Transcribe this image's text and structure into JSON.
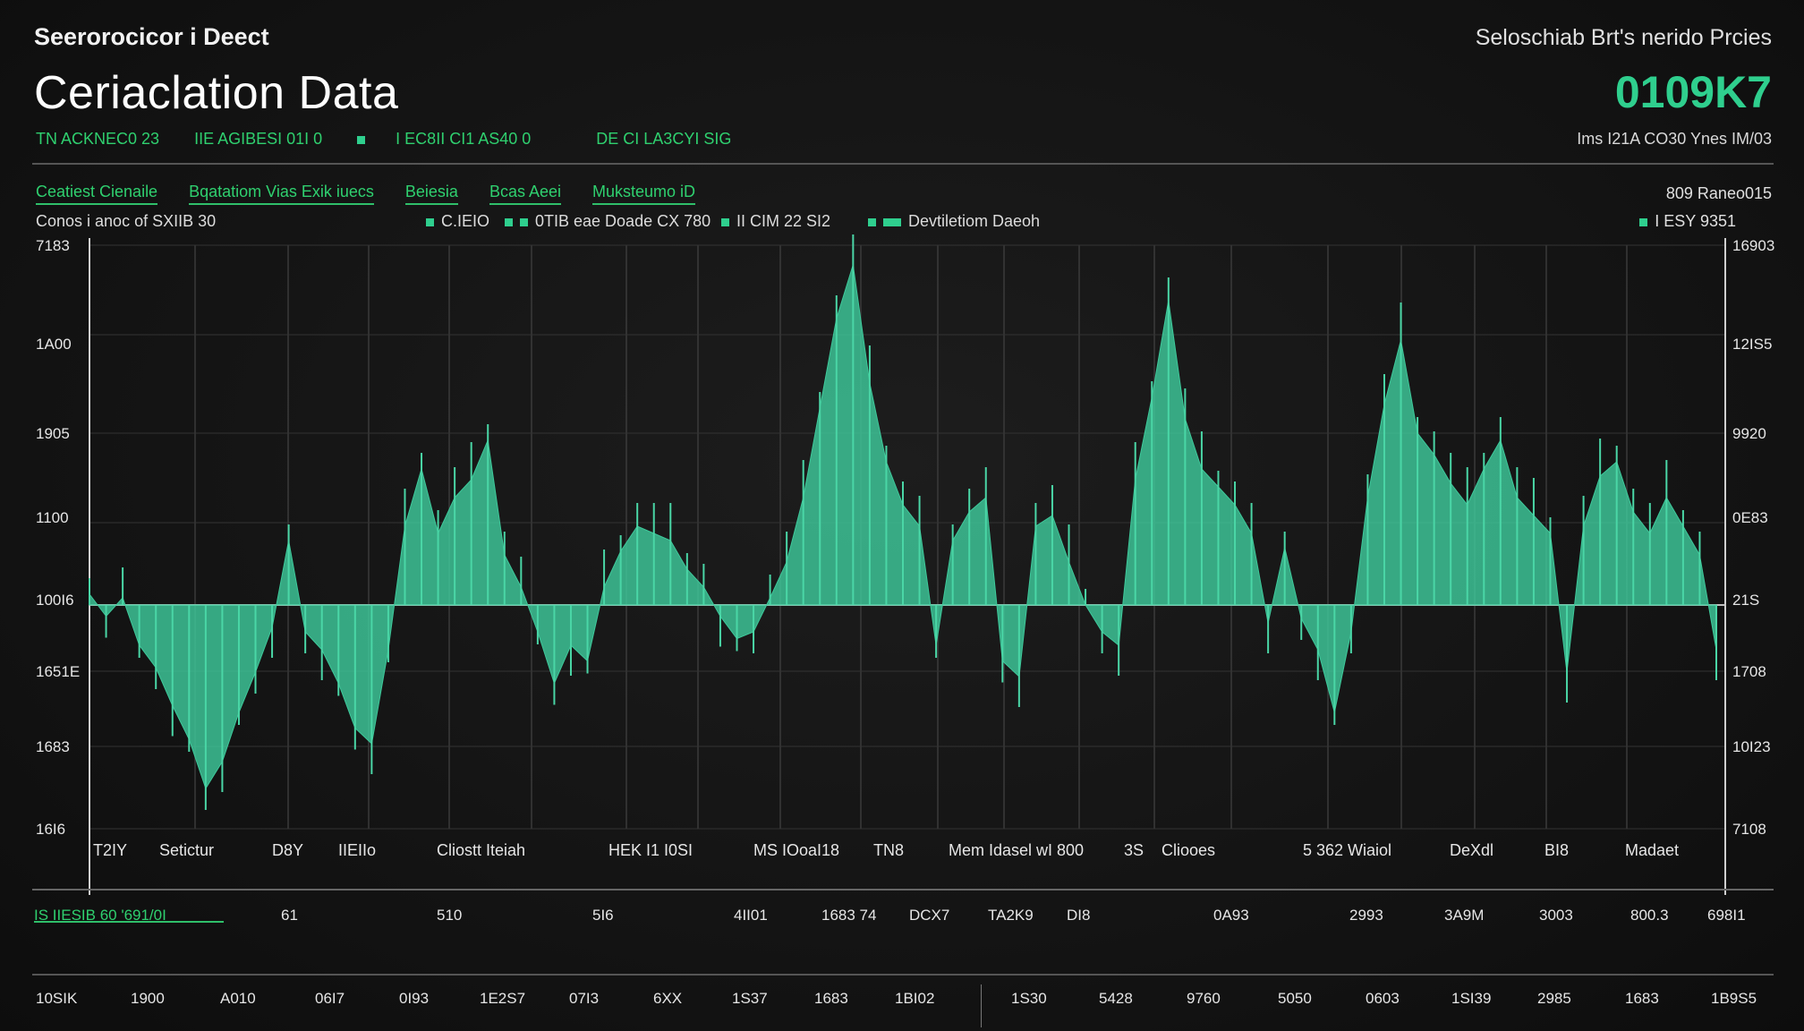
{
  "header": {
    "eyebrow": "Seerorocicor i Deect",
    "title": "Ceriaclation Data",
    "subtitle_items": [
      "TN ACKNEC0 23",
      "IIE AGIBESI 01I 0",
      "I EC8II CI1 AS40 0",
      "DE CI LA3CYI SIG"
    ],
    "right_title": "Seloschiab Brt's nerido Prcies",
    "big_value": "0109K7",
    "right_subtitle": "Ims I21A CO30 Ynes IM/03"
  },
  "legend": {
    "green_items": [
      "Ceatiest Cienaile",
      "Bqatatiom Vias Exik iuecs",
      "Beiesia",
      "Bcas Aeei",
      "Muksteumo iD"
    ],
    "row_label": "Conos i anoc of SXIIB 30",
    "series_items": [
      {
        "icon": "square",
        "label": "C.IEIO"
      },
      {
        "icon": "square",
        "label": ""
      },
      {
        "icon": "square",
        "label": "0TIB eae Doade CX 780"
      },
      {
        "icon": "square",
        "label": "II CIM 22 SI2"
      },
      {
        "icon": "square",
        "label": ""
      },
      {
        "icon": "square-wide",
        "label": "Devtiletiom Daeoh"
      }
    ],
    "right_label": "809 Raneo015",
    "right_item": "I ESY 9351"
  },
  "chart_data": {
    "type": "area",
    "title": "",
    "xlabel": "",
    "ylabel": "",
    "baseline": 0,
    "ylim": [
      -1,
      1
    ],
    "grid": true,
    "color": "#3ec99b",
    "y_ticks_left": [
      "7183",
      "1A00",
      "1905",
      "1100",
      "100I6",
      "1651E",
      "1683",
      "16I6"
    ],
    "y_ticks_right": [
      "16903",
      "12IS5",
      "9920",
      "0E83",
      "21S",
      "1708",
      "10I23",
      "7108"
    ],
    "x_band_labels": [
      "T2IY",
      "Setictur",
      "D8Y",
      "IIEIIo",
      "Cliostt Iteiah",
      "HEK I1 I0SI",
      "MS IOoaI18",
      "TN8",
      "Mem Idasel wI 800",
      "3S",
      "Cliooes",
      "5 362 Wiaiol",
      "DeXdl",
      "BI8",
      "Madaet"
    ],
    "x_axis_labels": [
      "IS IIESIB 60 '691/0I",
      "61",
      "510",
      "5I6",
      "4II01",
      "1683 74",
      "DCX7",
      "TA2K9",
      "DI8",
      "0A93",
      "2993",
      "3A9M",
      "3003",
      "800.3",
      "698I1"
    ],
    "values": [
      {
        "x": 0,
        "y": 0.03
      },
      {
        "x": 1,
        "y": -0.05
      },
      {
        "x": 2,
        "y": 0.02
      },
      {
        "x": 3,
        "y": -0.18
      },
      {
        "x": 4,
        "y": -0.28
      },
      {
        "x": 5,
        "y": -0.45
      },
      {
        "x": 6,
        "y": -0.6
      },
      {
        "x": 7,
        "y": -0.82
      },
      {
        "x": 8,
        "y": -0.7
      },
      {
        "x": 9,
        "y": -0.48
      },
      {
        "x": 10,
        "y": -0.3
      },
      {
        "x": 11,
        "y": -0.1
      },
      {
        "x": 12,
        "y": 0.18
      },
      {
        "x": 13,
        "y": -0.12
      },
      {
        "x": 14,
        "y": -0.2
      },
      {
        "x": 15,
        "y": -0.35
      },
      {
        "x": 16,
        "y": -0.55
      },
      {
        "x": 17,
        "y": -0.62
      },
      {
        "x": 18,
        "y": -0.2
      },
      {
        "x": 19,
        "y": 0.22
      },
      {
        "x": 20,
        "y": 0.38
      },
      {
        "x": 21,
        "y": 0.2
      },
      {
        "x": 22,
        "y": 0.3
      },
      {
        "x": 23,
        "y": 0.35
      },
      {
        "x": 24,
        "y": 0.46
      },
      {
        "x": 25,
        "y": 0.14
      },
      {
        "x": 26,
        "y": 0.05
      },
      {
        "x": 27,
        "y": -0.12
      },
      {
        "x": 28,
        "y": -0.35
      },
      {
        "x": 29,
        "y": -0.18
      },
      {
        "x": 30,
        "y": -0.25
      },
      {
        "x": 31,
        "y": 0.05
      },
      {
        "x": 32,
        "y": 0.15
      },
      {
        "x": 33,
        "y": 0.22
      },
      {
        "x": 34,
        "y": 0.2
      },
      {
        "x": 35,
        "y": 0.18
      },
      {
        "x": 36,
        "y": 0.1
      },
      {
        "x": 37,
        "y": 0.05
      },
      {
        "x": 38,
        "y": -0.05
      },
      {
        "x": 39,
        "y": -0.15
      },
      {
        "x": 40,
        "y": -0.12
      },
      {
        "x": 41,
        "y": 0.02
      },
      {
        "x": 42,
        "y": 0.12
      },
      {
        "x": 43,
        "y": 0.3
      },
      {
        "x": 44,
        "y": 0.55
      },
      {
        "x": 45,
        "y": 0.8
      },
      {
        "x": 46,
        "y": 0.95
      },
      {
        "x": 47,
        "y": 0.62
      },
      {
        "x": 48,
        "y": 0.4
      },
      {
        "x": 49,
        "y": 0.28
      },
      {
        "x": 50,
        "y": 0.22
      },
      {
        "x": 51,
        "y": -0.18
      },
      {
        "x": 52,
        "y": 0.18
      },
      {
        "x": 53,
        "y": 0.26
      },
      {
        "x": 54,
        "y": 0.3
      },
      {
        "x": 55,
        "y": -0.25
      },
      {
        "x": 56,
        "y": -0.32
      },
      {
        "x": 57,
        "y": 0.22
      },
      {
        "x": 58,
        "y": 0.25
      },
      {
        "x": 59,
        "y": 0.12
      },
      {
        "x": 60,
        "y": 0.0
      },
      {
        "x": 61,
        "y": -0.12
      },
      {
        "x": 62,
        "y": -0.18
      },
      {
        "x": 63,
        "y": 0.35
      },
      {
        "x": 64,
        "y": 0.58
      },
      {
        "x": 65,
        "y": 0.85
      },
      {
        "x": 66,
        "y": 0.52
      },
      {
        "x": 67,
        "y": 0.38
      },
      {
        "x": 68,
        "y": 0.33
      },
      {
        "x": 69,
        "y": 0.28
      },
      {
        "x": 70,
        "y": 0.2
      },
      {
        "x": 71,
        "y": -0.08
      },
      {
        "x": 72,
        "y": 0.16
      },
      {
        "x": 73,
        "y": -0.06
      },
      {
        "x": 74,
        "y": -0.2
      },
      {
        "x": 75,
        "y": -0.48
      },
      {
        "x": 76,
        "y": -0.12
      },
      {
        "x": 77,
        "y": 0.3
      },
      {
        "x": 78,
        "y": 0.56
      },
      {
        "x": 79,
        "y": 0.74
      },
      {
        "x": 80,
        "y": 0.48
      },
      {
        "x": 81,
        "y": 0.42
      },
      {
        "x": 82,
        "y": 0.34
      },
      {
        "x": 83,
        "y": 0.28
      },
      {
        "x": 84,
        "y": 0.38
      },
      {
        "x": 85,
        "y": 0.46
      },
      {
        "x": 86,
        "y": 0.3
      },
      {
        "x": 87,
        "y": 0.25
      },
      {
        "x": 88,
        "y": 0.2
      },
      {
        "x": 89,
        "y": -0.3
      },
      {
        "x": 90,
        "y": 0.22
      },
      {
        "x": 91,
        "y": 0.36
      },
      {
        "x": 92,
        "y": 0.4
      },
      {
        "x": 93,
        "y": 0.26
      },
      {
        "x": 94,
        "y": 0.2
      },
      {
        "x": 95,
        "y": 0.3
      },
      {
        "x": 96,
        "y": 0.22
      },
      {
        "x": 97,
        "y": 0.14
      },
      {
        "x": 98,
        "y": -0.2
      }
    ]
  },
  "footer": {
    "labels": [
      "10SIK",
      "1900",
      "A010",
      "06I7",
      "0I93",
      "1E2S7",
      "07I3",
      "6XX",
      "1S37",
      "1683",
      "1BI02",
      "1S30",
      "5428",
      "9760",
      "5050",
      "0603",
      "1SI39",
      "2985",
      "1683",
      "1B9S5"
    ]
  }
}
